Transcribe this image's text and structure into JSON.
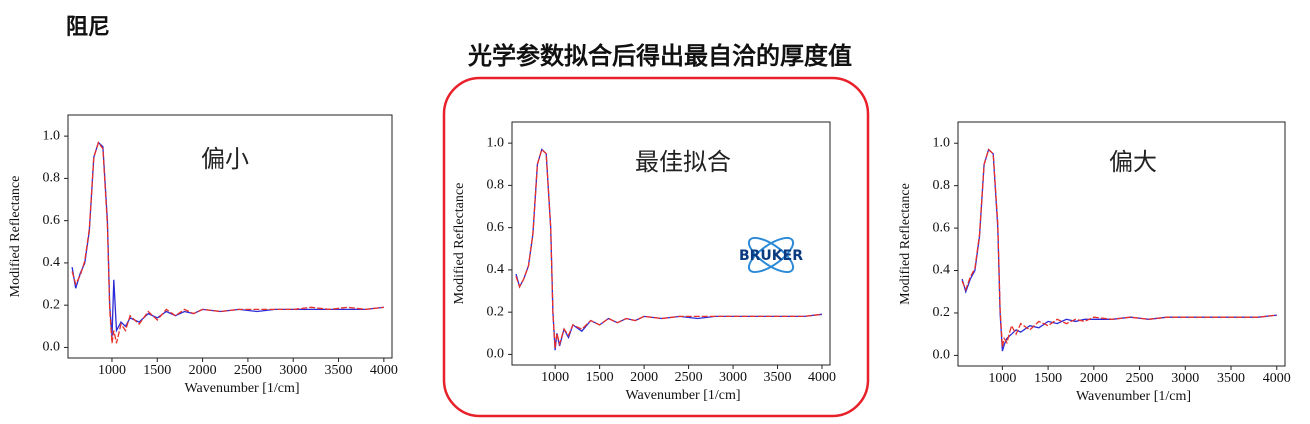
{
  "header": "阻尼",
  "title": "光学参数拟合后得出最自洽的厚度值",
  "logo": "BRUKER",
  "chart_data": [
    {
      "type": "line",
      "annotation": "偏小",
      "xlabel": "Wavenumber [1/cm]",
      "ylabel": "Modified Reflectance",
      "x": [
        560,
        600,
        650,
        700,
        750,
        800,
        850,
        900,
        950,
        975,
        1000,
        1020,
        1050,
        1100,
        1150,
        1200,
        1300,
        1400,
        1500,
        1600,
        1700,
        1800,
        1900,
        2000,
        2200,
        2400,
        2600,
        2800,
        3000,
        3200,
        3400,
        3600,
        3800,
        4000
      ],
      "series": [
        {
          "color": "#2a2ad8",
          "values": [
            0.38,
            0.28,
            0.35,
            0.4,
            0.55,
            0.9,
            0.97,
            0.95,
            0.6,
            0.2,
            0.05,
            0.32,
            0.08,
            0.12,
            0.1,
            0.14,
            0.12,
            0.16,
            0.14,
            0.17,
            0.15,
            0.17,
            0.16,
            0.18,
            0.17,
            0.18,
            0.17,
            0.18,
            0.18,
            0.18,
            0.18,
            0.18,
            0.18,
            0.19
          ]
        },
        {
          "color": "#e8302a",
          "values": [
            0.36,
            0.3,
            0.34,
            0.41,
            0.56,
            0.9,
            0.97,
            0.94,
            0.58,
            0.18,
            0.02,
            0.08,
            0.02,
            0.11,
            0.08,
            0.15,
            0.11,
            0.17,
            0.13,
            0.18,
            0.15,
            0.18,
            0.16,
            0.18,
            0.17,
            0.18,
            0.18,
            0.18,
            0.18,
            0.19,
            0.18,
            0.19,
            0.18,
            0.19
          ]
        }
      ],
      "xlim": [
        515,
        4090
      ],
      "ylim": [
        -0.05,
        1.1
      ],
      "xticks": [
        1000,
        1500,
        2000,
        2500,
        3000,
        3500,
        4000
      ],
      "yticks": [
        {
          "value": 0,
          "label": "0.0"
        },
        0.2,
        0.4,
        0.6,
        0.8,
        {
          "value": 1,
          "label": "1.0"
        }
      ]
    },
    {
      "type": "line",
      "annotation": "最佳拟合",
      "xlabel": "Wavenumber [1/cm]",
      "ylabel": "Modified Reflectance",
      "x": [
        560,
        600,
        650,
        700,
        750,
        800,
        850,
        900,
        950,
        975,
        1000,
        1020,
        1050,
        1100,
        1150,
        1200,
        1300,
        1400,
        1500,
        1600,
        1700,
        1800,
        1900,
        2000,
        2200,
        2400,
        2600,
        2800,
        3000,
        3200,
        3400,
        3600,
        3800,
        4000
      ],
      "series": [
        {
          "color": "#2a2ad8",
          "values": [
            0.38,
            0.32,
            0.36,
            0.42,
            0.57,
            0.9,
            0.97,
            0.95,
            0.6,
            0.2,
            0.02,
            0.1,
            0.04,
            0.12,
            0.08,
            0.14,
            0.11,
            0.16,
            0.14,
            0.17,
            0.15,
            0.17,
            0.16,
            0.18,
            0.17,
            0.18,
            0.17,
            0.18,
            0.18,
            0.18,
            0.18,
            0.18,
            0.18,
            0.19
          ]
        },
        {
          "color": "#e8302a",
          "values": [
            0.37,
            0.32,
            0.36,
            0.42,
            0.57,
            0.9,
            0.97,
            0.95,
            0.6,
            0.2,
            0.03,
            0.1,
            0.05,
            0.12,
            0.09,
            0.14,
            0.12,
            0.16,
            0.14,
            0.17,
            0.15,
            0.17,
            0.16,
            0.18,
            0.17,
            0.18,
            0.18,
            0.18,
            0.18,
            0.18,
            0.18,
            0.18,
            0.18,
            0.19
          ]
        }
      ],
      "xlim": [
        515,
        4090
      ],
      "ylim": [
        -0.05,
        1.1
      ],
      "xticks": [
        1000,
        1500,
        2000,
        2500,
        3000,
        3500,
        4000
      ],
      "yticks": [
        {
          "value": 0,
          "label": "0.0"
        },
        0.2,
        0.4,
        0.6,
        0.8,
        {
          "value": 1,
          "label": "1.0"
        }
      ]
    },
    {
      "type": "line",
      "annotation": "偏大",
      "xlabel": "Wavenumber [1/cm]",
      "ylabel": "Modified Reflectance",
      "x": [
        560,
        600,
        650,
        700,
        750,
        800,
        850,
        900,
        950,
        975,
        1000,
        1020,
        1050,
        1100,
        1150,
        1200,
        1300,
        1400,
        1500,
        1600,
        1700,
        1800,
        1900,
        2000,
        2200,
        2400,
        2600,
        2800,
        3000,
        3200,
        3400,
        3600,
        3800,
        4000
      ],
      "series": [
        {
          "color": "#2a2ad8",
          "values": [
            0.36,
            0.3,
            0.36,
            0.4,
            0.56,
            0.9,
            0.97,
            0.95,
            0.6,
            0.2,
            0.02,
            0.05,
            0.08,
            0.1,
            0.12,
            0.11,
            0.14,
            0.13,
            0.16,
            0.15,
            0.17,
            0.16,
            0.17,
            0.17,
            0.17,
            0.18,
            0.17,
            0.18,
            0.18,
            0.18,
            0.18,
            0.18,
            0.18,
            0.19
          ]
        },
        {
          "color": "#e8302a",
          "values": [
            0.35,
            0.31,
            0.37,
            0.41,
            0.57,
            0.9,
            0.97,
            0.95,
            0.62,
            0.22,
            0.04,
            0.08,
            0.06,
            0.14,
            0.1,
            0.15,
            0.12,
            0.16,
            0.14,
            0.17,
            0.15,
            0.17,
            0.16,
            0.18,
            0.17,
            0.18,
            0.17,
            0.18,
            0.18,
            0.18,
            0.18,
            0.18,
            0.18,
            0.19
          ]
        }
      ],
      "xlim": [
        515,
        4090
      ],
      "ylim": [
        -0.05,
        1.1
      ],
      "xticks": [
        1000,
        1500,
        2000,
        2500,
        3000,
        3500,
        4000
      ],
      "yticks": [
        {
          "value": 0,
          "label": "0.0"
        },
        0.2,
        0.4,
        0.6,
        0.8,
        {
          "value": 1,
          "label": "1.0"
        }
      ]
    }
  ]
}
